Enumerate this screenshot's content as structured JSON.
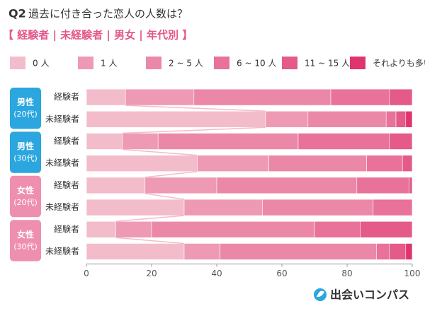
{
  "chart_data": {
    "type": "stacked-bar-horizontal",
    "question": "Q2",
    "title": "過去に付き合った恋人の人数は？",
    "subtitle": "【 経験者 | 未経験者 | 男女 | 年代別 】",
    "brand": "出会いコンパス",
    "categories": [
      "経験者",
      "未経験者",
      "経験者",
      "未経験者",
      "経験者",
      "未経験者",
      "経験者",
      "未経験者"
    ],
    "groups": [
      {
        "label": "男性",
        "sublabel": "(20代)",
        "color": "#2ba6de"
      },
      {
        "label": "男性",
        "sublabel": "(30代)",
        "color": "#2ba6de"
      },
      {
        "label": "女性",
        "sublabel": "(20代)",
        "color": "#ef8fb0"
      },
      {
        "label": "女性",
        "sublabel": "(30代)",
        "color": "#ef8fb0"
      }
    ],
    "series": [
      {
        "name": "0 人",
        "color": "#f3bccb",
        "values": [
          12,
          55,
          11,
          34,
          18,
          30,
          9,
          30
        ]
      },
      {
        "name": "1 人",
        "color": "#ee9ab5",
        "values": [
          21,
          13,
          11,
          22,
          22,
          24,
          11,
          11
        ]
      },
      {
        "name": "2 ~ 5 人",
        "color": "#eb88a8",
        "values": [
          42,
          24,
          43,
          30,
          43,
          34,
          50,
          48
        ]
      },
      {
        "name": "6 ~ 10 人",
        "color": "#e87299",
        "values": [
          18,
          3,
          28,
          11,
          16,
          12,
          14,
          4
        ]
      },
      {
        "name": "11 ~ 15 人",
        "color": "#e45a89",
        "values": [
          7,
          3,
          7,
          3,
          1,
          0,
          16,
          5
        ]
      },
      {
        "name": "それよりも多い",
        "color": "#df3470",
        "values": [
          0,
          2,
          0,
          0,
          0,
          0,
          0,
          2
        ]
      }
    ],
    "xlim": [
      0,
      100
    ],
    "xticks": [
      0,
      20,
      40,
      60,
      80,
      100
    ]
  }
}
